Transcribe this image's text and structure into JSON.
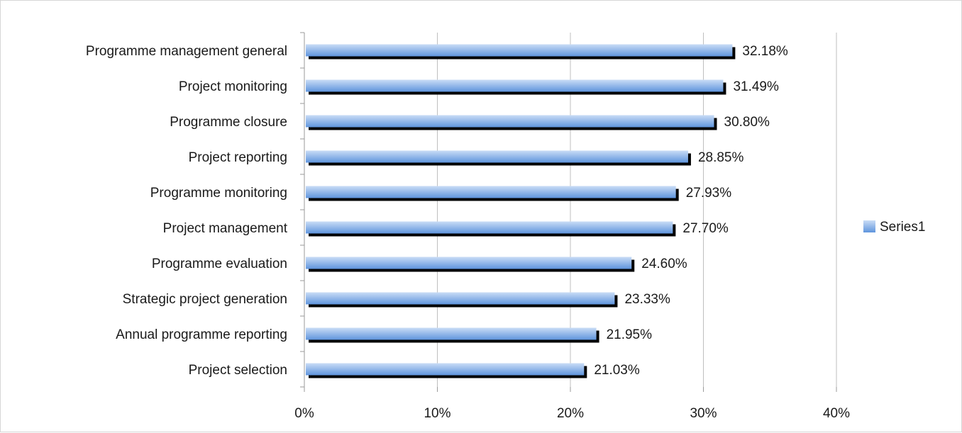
{
  "chart_data": {
    "type": "bar",
    "orientation": "horizontal",
    "categories": [
      "Programme management general",
      "Project monitoring",
      "Programme closure",
      "Project reporting",
      "Programme monitoring",
      "Project management",
      "Programme evaluation",
      "Strategic project generation",
      "Annual programme reporting",
      "Project selection"
    ],
    "series": [
      {
        "name": "Series1",
        "values": [
          32.18,
          31.49,
          30.8,
          28.85,
          27.93,
          27.7,
          24.6,
          23.33,
          21.95,
          21.03
        ],
        "data_labels": [
          "32.18%",
          "31.49%",
          "30.80%",
          "28.85%",
          "27.93%",
          "27.70%",
          "24.60%",
          "23.33%",
          "21.95%",
          "21.03%"
        ]
      }
    ],
    "xlim": [
      0,
      40
    ],
    "x_ticks": [
      0,
      10,
      20,
      30,
      40
    ],
    "x_tick_labels": [
      "0%",
      "10%",
      "20%",
      "30%",
      "40%"
    ],
    "grid": true,
    "legend_position": "right",
    "title": "",
    "xlabel": "",
    "ylabel": "",
    "colors": {
      "bar_top": "#c9dcf6",
      "bar_bottom": "#5f95dd",
      "bar_shadow": "#000000",
      "gridline": "#bfbfbf",
      "axis": "#9a9a9a"
    }
  }
}
